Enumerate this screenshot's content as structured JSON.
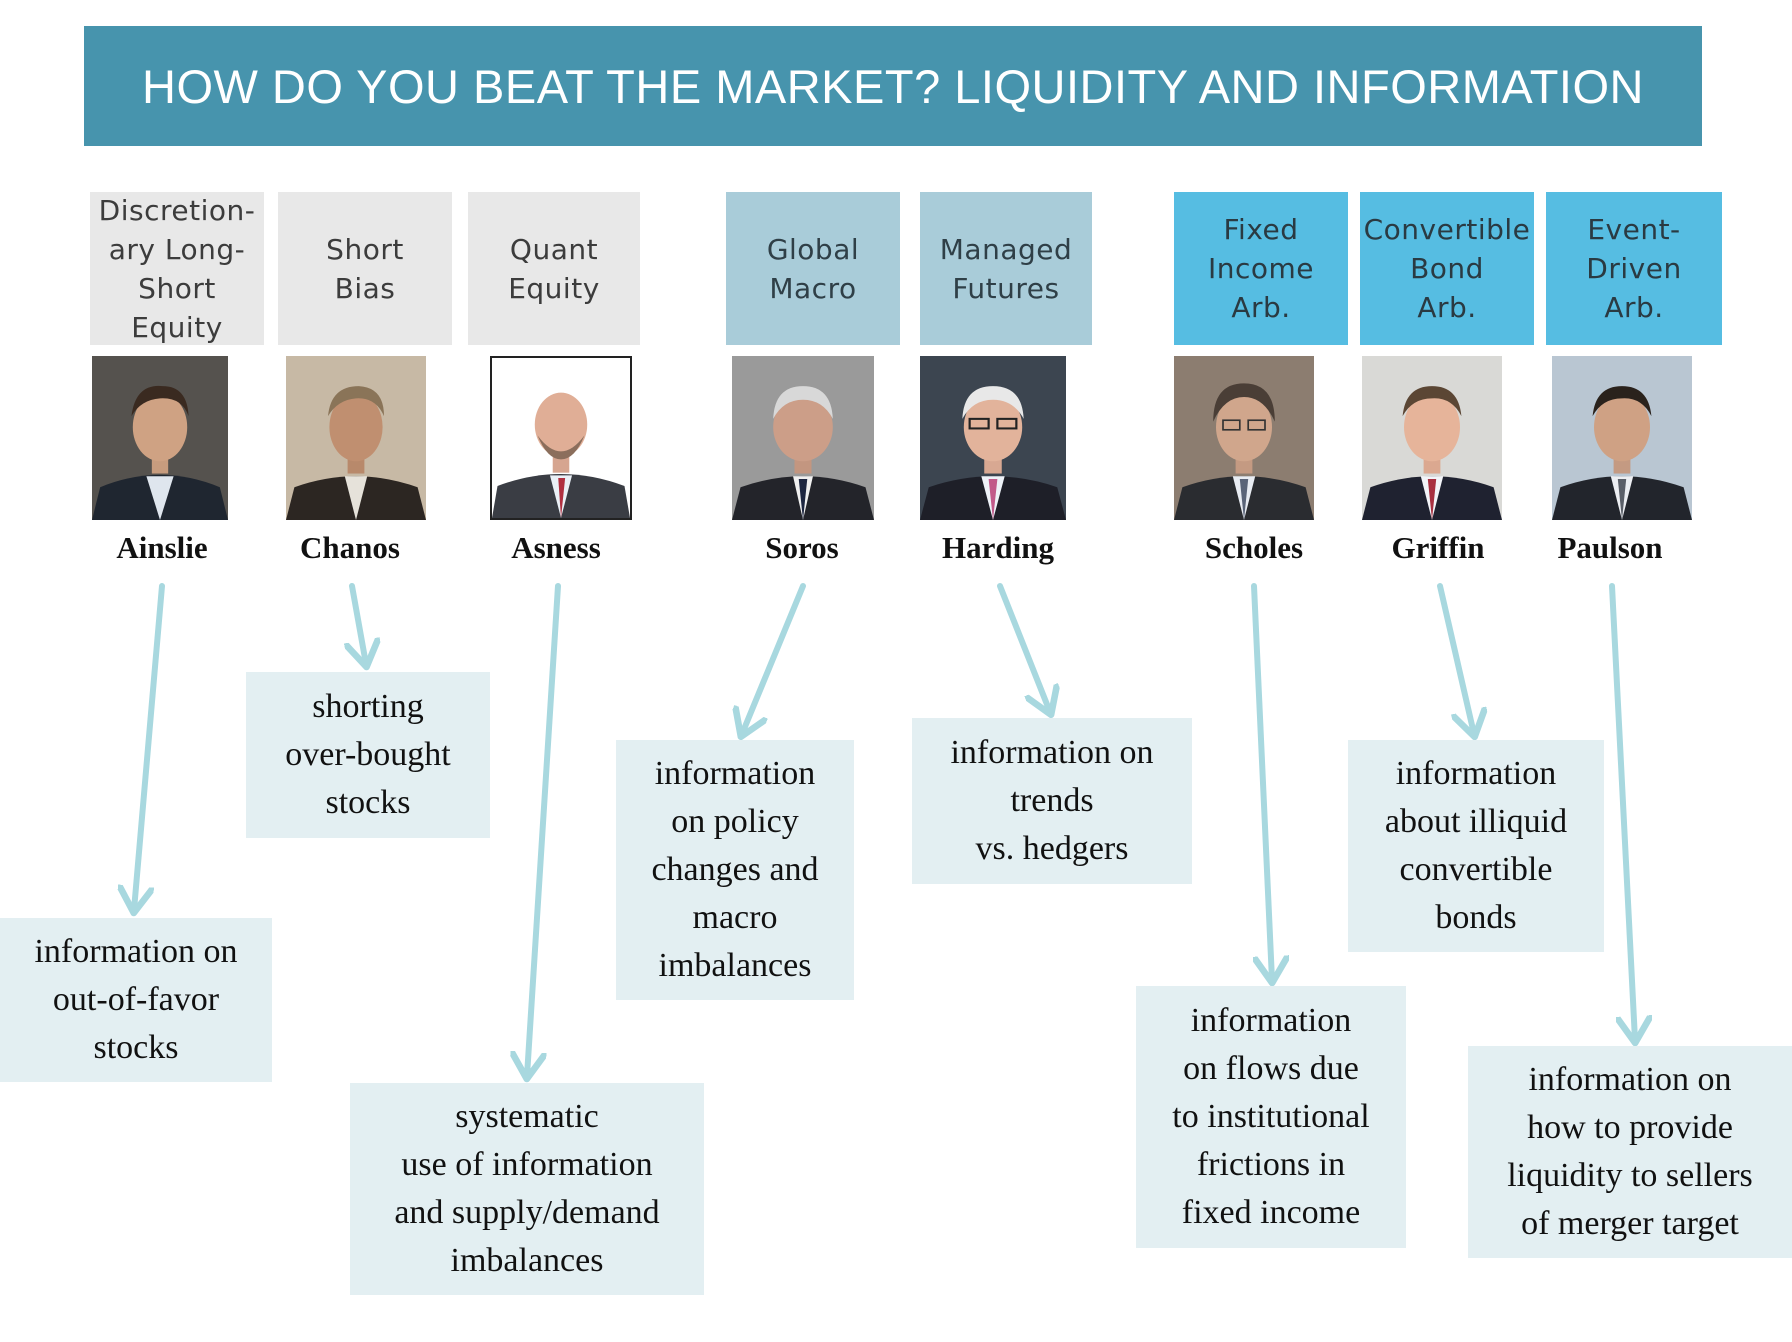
{
  "title": "HOW DO YOU BEAT THE MARKET? LIQUIDITY AND INFORMATION",
  "strategies": [
    {
      "label": "Discretion-\nary Long-\nShort Equity",
      "group": "equity",
      "manager": "Ainslie",
      "description": "information on\nout-of-favor\nstocks"
    },
    {
      "label": "Short\nBias",
      "group": "equity",
      "manager": "Chanos",
      "description": "shorting\nover-bought\nstocks"
    },
    {
      "label": "Quant\nEquity",
      "group": "equity",
      "manager": "Asness",
      "description": "systematic\nuse of information\nand supply/demand\nimbalances"
    },
    {
      "label": "Global\nMacro",
      "group": "macro",
      "manager": "Soros",
      "description": "information\non policy\nchanges and\nmacro\nimbalances"
    },
    {
      "label": "Managed\nFutures",
      "group": "macro",
      "manager": "Harding",
      "description": "information on\ntrends\nvs. hedgers"
    },
    {
      "label": "Fixed\nIncome\nArb.",
      "group": "arb",
      "manager": "Scholes",
      "description": "information\non flows due\nto institutional\nfrictions in\nfixed income"
    },
    {
      "label": "Convertible\nBond\nArb.",
      "group": "arb",
      "manager": "Griffin",
      "description": "information\nabout illiquid\nconvertible\nbonds"
    },
    {
      "label": "Event-\nDriven\nArb.",
      "group": "arb",
      "manager": "Paulson",
      "description": "information on\nhow to provide\nliquidity to sellers\nof merger target"
    }
  ],
  "colors": {
    "banner": "#4794ad",
    "equity_header": "#e8e8e8",
    "macro_header": "#a9ccd9",
    "arb_header": "#56bde2",
    "note_box": "#e3eff2",
    "arrow": "#a8d8df"
  }
}
